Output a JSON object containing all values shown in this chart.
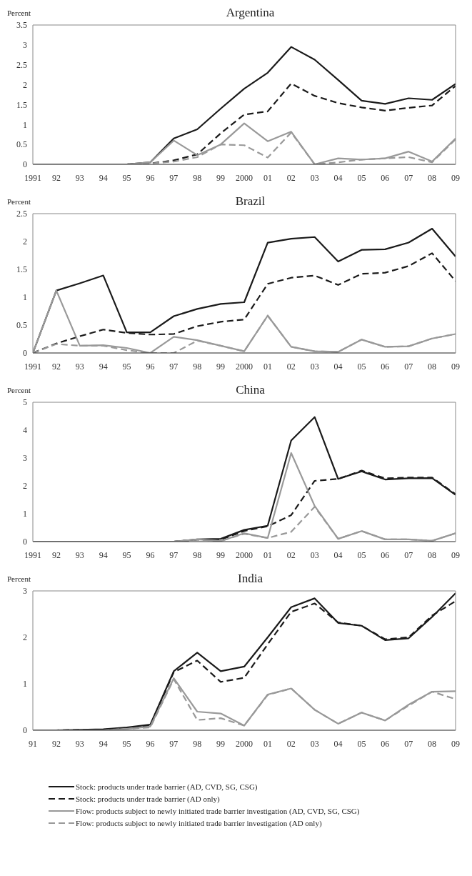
{
  "chart_data": [
    {
      "type": "line",
      "title": "Argentina",
      "ylabel": "Percent",
      "categories": [
        "1991",
        "92",
        "93",
        "94",
        "95",
        "96",
        "97",
        "98",
        "99",
        "2000",
        "01",
        "02",
        "03",
        "04",
        "05",
        "06",
        "07",
        "08",
        "09"
      ],
      "ylim": [
        0,
        3.5
      ],
      "yticks": [
        0,
        0.5,
        1,
        1.5,
        2,
        2.5,
        3,
        3.5
      ],
      "grid": false,
      "marker": "none",
      "series": [
        {
          "color": "#1a1a1a",
          "line_style": "solid",
          "values": [
            0,
            0,
            0,
            0,
            0,
            0.05,
            0.65,
            0.88,
            1.4,
            1.9,
            2.3,
            2.95,
            2.63,
            2.12,
            1.6,
            1.52,
            1.66,
            1.62,
            2.02
          ]
        },
        {
          "color": "#1a1a1a",
          "line_style": "dashed",
          "values": [
            0,
            0,
            0,
            0,
            0,
            0.02,
            0.1,
            0.25,
            0.78,
            1.25,
            1.33,
            2.03,
            1.72,
            1.54,
            1.43,
            1.35,
            1.42,
            1.48,
            1.97
          ]
        },
        {
          "color": "#999999",
          "line_style": "solid",
          "values": [
            0,
            0,
            0,
            0,
            0,
            0.05,
            0.6,
            0.23,
            0.5,
            1.03,
            0.58,
            0.82,
            0,
            0.15,
            0.12,
            0.15,
            0.32,
            0.07,
            0.65
          ]
        },
        {
          "color": "#999999",
          "line_style": "dashed",
          "values": [
            0,
            0,
            0,
            0,
            0,
            0.02,
            0.07,
            0.18,
            0.5,
            0.48,
            0.17,
            0.8,
            0,
            0.05,
            0.12,
            0.15,
            0.18,
            0.05,
            0.63
          ]
        }
      ]
    },
    {
      "type": "line",
      "title": "Brazil",
      "ylabel": "Percent",
      "categories": [
        "1991",
        "92",
        "93",
        "94",
        "95",
        "96",
        "97",
        "98",
        "99",
        "2000",
        "01",
        "02",
        "03",
        "04",
        "05",
        "06",
        "07",
        "08",
        "09"
      ],
      "ylim": [
        0,
        2.5
      ],
      "yticks": [
        0,
        0.5,
        1,
        1.5,
        2,
        2.5
      ],
      "grid": false,
      "marker": "none",
      "series": [
        {
          "color": "#1a1a1a",
          "line_style": "solid",
          "values": [
            0,
            1.12,
            1.25,
            1.39,
            0.37,
            0.37,
            0.66,
            0.79,
            0.88,
            0.91,
            1.98,
            2.05,
            2.08,
            1.64,
            1.85,
            1.86,
            1.98,
            2.23,
            1.73
          ]
        },
        {
          "color": "#1a1a1a",
          "line_style": "dashed",
          "values": [
            0,
            0.17,
            0.3,
            0.42,
            0.36,
            0.33,
            0.34,
            0.48,
            0.56,
            0.6,
            1.24,
            1.35,
            1.39,
            1.22,
            1.42,
            1.44,
            1.56,
            1.79,
            1.29
          ]
        },
        {
          "color": "#999999",
          "line_style": "solid",
          "values": [
            0,
            1.12,
            0.13,
            0.14,
            0.09,
            0,
            0.29,
            0.23,
            0.13,
            0.03,
            0.67,
            0.11,
            0.03,
            0.02,
            0.24,
            0.11,
            0.12,
            0.26,
            0.34
          ]
        },
        {
          "color": "#999999",
          "line_style": "dashed",
          "values": [
            0,
            0.16,
            0.13,
            0.13,
            0.05,
            0,
            0,
            0.22,
            0.13,
            0.03,
            0.67,
            0.11,
            0.03,
            0.02,
            0.24,
            0.11,
            0.12,
            0.26,
            0.34
          ]
        }
      ]
    },
    {
      "type": "line",
      "title": "China",
      "ylabel": "Percent",
      "categories": [
        "1991",
        "92",
        "93",
        "94",
        "95",
        "96",
        "97",
        "98",
        "99",
        "2000",
        "01",
        "02",
        "03",
        "04",
        "05",
        "06",
        "07",
        "08",
        "09"
      ],
      "ylim": [
        0,
        5
      ],
      "yticks": [
        0,
        1,
        2,
        3,
        4,
        5
      ],
      "grid": false,
      "marker": "none",
      "series": [
        {
          "color": "#1a1a1a",
          "line_style": "solid",
          "values": [
            0,
            0,
            0,
            0,
            0,
            0,
            0,
            0.08,
            0.1,
            0.42,
            0.57,
            3.63,
            4.47,
            2.25,
            2.52,
            2.23,
            2.27,
            2.28,
            1.68
          ]
        },
        {
          "color": "#1a1a1a",
          "line_style": "dashed",
          "values": [
            0,
            0,
            0,
            0,
            0,
            0,
            0,
            0.07,
            0.07,
            0.38,
            0.55,
            0.95,
            2.18,
            2.25,
            2.55,
            2.27,
            2.3,
            2.3,
            1.7
          ]
        },
        {
          "color": "#999999",
          "line_style": "solid",
          "values": [
            0,
            0,
            0,
            0,
            0,
            0,
            0,
            0.08,
            0.02,
            0.3,
            0.13,
            3.18,
            1.28,
            0.1,
            0.38,
            0.08,
            0.08,
            0.03,
            0.3
          ]
        },
        {
          "color": "#999999",
          "line_style": "dashed",
          "values": [
            0,
            0,
            0,
            0,
            0,
            0,
            0,
            0.07,
            0.02,
            0.28,
            0.13,
            0.35,
            1.25,
            0.1,
            0.38,
            0.08,
            0.08,
            0.03,
            0.3
          ]
        }
      ]
    },
    {
      "type": "line",
      "title": "India",
      "ylabel": "Percent",
      "categories": [
        "91",
        "92",
        "93",
        "94",
        "95",
        "96",
        "97",
        "98",
        "99",
        "2000",
        "01",
        "02",
        "03",
        "04",
        "05",
        "06",
        "07",
        "08",
        "09"
      ],
      "ylim": [
        0,
        3
      ],
      "yticks": [
        0,
        1,
        2,
        3
      ],
      "grid": false,
      "marker": "none",
      "legend": "bottom",
      "series": [
        {
          "name": "Stock: products under trade barrier (AD, CVD, SG, CSG)",
          "color": "#1a1a1a",
          "line_style": "solid",
          "values": [
            0,
            0,
            0.01,
            0.02,
            0.06,
            0.12,
            1.27,
            1.67,
            1.27,
            1.37,
            2.0,
            2.65,
            2.84,
            2.31,
            2.25,
            1.94,
            1.98,
            2.44,
            2.95
          ]
        },
        {
          "name": "Stock: products under trade barrier (AD only)",
          "color": "#1a1a1a",
          "line_style": "dashed",
          "values": [
            0,
            0,
            0.01,
            0.01,
            0.05,
            0.1,
            1.25,
            1.5,
            1.04,
            1.13,
            1.85,
            2.55,
            2.73,
            2.32,
            2.25,
            1.96,
            2.0,
            2.47,
            2.78
          ]
        },
        {
          "name": "Flow: products subject to newly initiated trade barrier investigation (AD, CVD, SG, CSG)",
          "color": "#999999",
          "line_style": "solid",
          "values": [
            0,
            0,
            0,
            0,
            0.03,
            0.08,
            1.12,
            0.4,
            0.36,
            0.1,
            0.77,
            0.9,
            0.44,
            0.14,
            0.38,
            0.21,
            0.55,
            0.83,
            0.84
          ]
        },
        {
          "name": "Flow: products subject to newly initiated trade barrier investigation (AD only)",
          "color": "#999999",
          "line_style": "dashed",
          "values": [
            0,
            0,
            0,
            0,
            0.03,
            0.06,
            1.1,
            0.22,
            0.26,
            0.1,
            0.76,
            0.9,
            0.44,
            0.14,
            0.38,
            0.21,
            0.53,
            0.83,
            0.67
          ]
        }
      ]
    }
  ]
}
